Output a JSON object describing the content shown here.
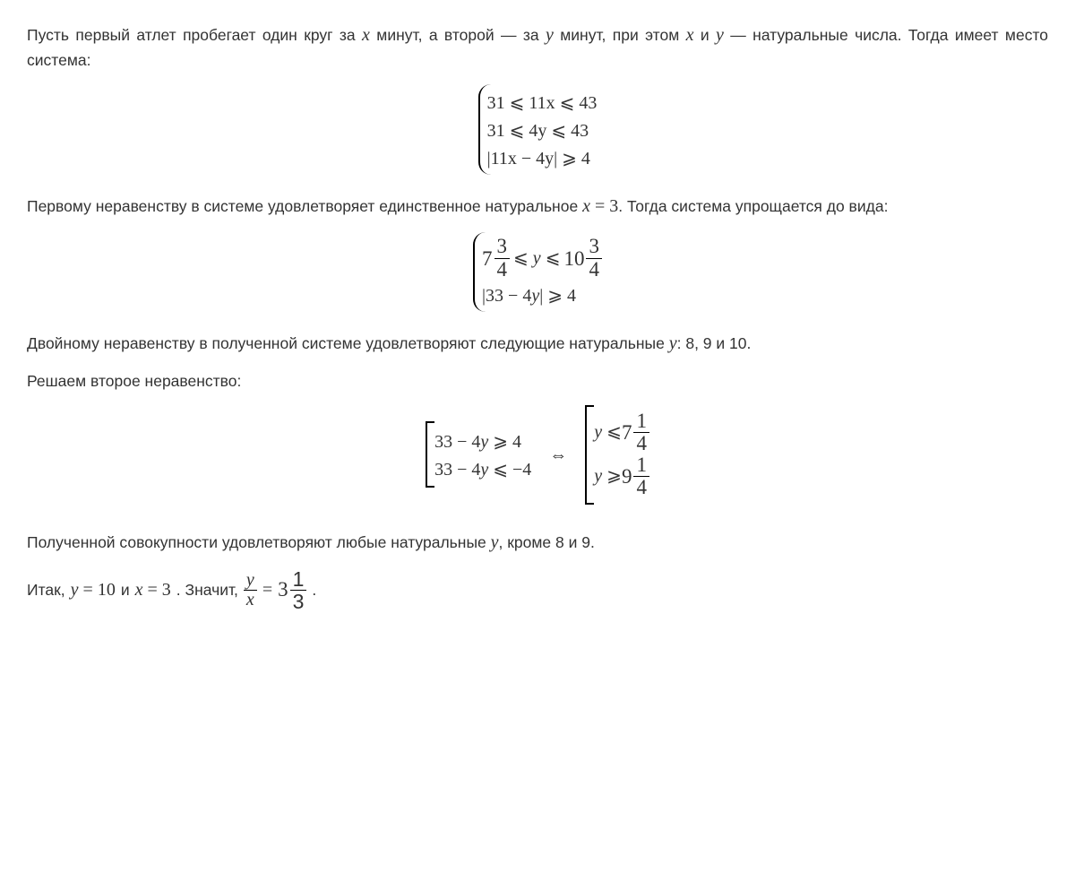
{
  "colors": {
    "text": "#333333",
    "bg": "#ffffff",
    "rule": "#000000"
  },
  "p1_prefix": "Пусть первый атлет пробегает один круг за ",
  "var_x": "x",
  "p1_mid1": " минут, а второй — за ",
  "var_y": "y",
  "p1_mid2": " минут, при этом ",
  "p1_mid3": " и ",
  "p1_mid4": " — натуральные числа. Тогда имеет место система:",
  "sys1": {
    "r1": "31 ⩽ 11x ⩽ 43",
    "r2": "31 ⩽ 4y ⩽ 43",
    "r3": "|11x − 4y| ⩾ 4"
  },
  "p2_a": "Первому неравенству в системе удовлетворяет единственное натуральное ",
  "p2_eq": "x = 3",
  "p2_b": ". Тогда система упрощается до вида:",
  "sys2": {
    "whole1": "7",
    "num1": "3",
    "den1": "4",
    "mid": " ⩽ y ⩽ ",
    "whole2": "10",
    "num2": "3",
    "den2": "4",
    "r2": "|33 − 4y| ⩾ 4"
  },
  "p3_a": "Двойному неравенству в полученной системе удовлетворяют следующие натуральные ",
  "p3_b": ": 8, 9 и 10.",
  "p4": "Решаем второе неравенство:",
  "sys3": {
    "l1": "33 − 4y ⩾ 4",
    "l2": "33 − 4y ⩽ −4",
    "iff": "⇔",
    "r1_pre": "y ⩽ ",
    "r1_whole": "7",
    "r1_num": "1",
    "r1_den": "4",
    "r2_pre": "y ⩾ ",
    "r2_whole": "9",
    "r2_num": "1",
    "r2_den": "4"
  },
  "p5_a": "Полученной совокупности удовлетворяют любые натуральные ",
  "p5_b": ", кроме 8 и 9.",
  "last": {
    "a": "Итак, ",
    "eq1": "y = 10",
    "b": " и ",
    "eq2": "x = 3",
    "c": ". Значит, ",
    "frac_num": "y",
    "frac_den": "x",
    "eq3_mid": " = ",
    "whole": "3",
    "num": "1",
    "den": "3",
    "d": "."
  }
}
